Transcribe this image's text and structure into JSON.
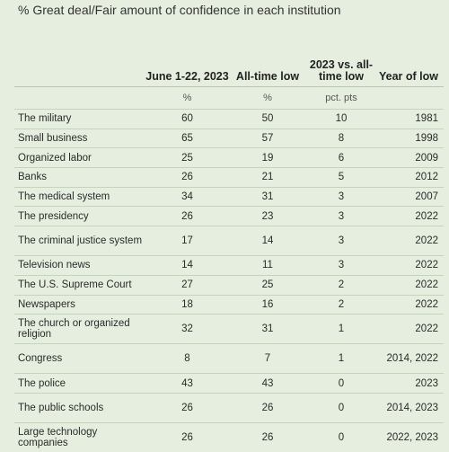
{
  "title": "% Great deal/Fair amount of confidence in each institution",
  "columns": {
    "june": "June 1-22, 2023",
    "low": "All-time low",
    "diff": "2023 vs. all-time low",
    "year": "Year of low"
  },
  "units": {
    "june": "%",
    "low": "%",
    "diff": "pct. pts",
    "year": ""
  },
  "chart_data": {
    "type": "table",
    "columns": [
      "June 1-22, 2023",
      "All-time low",
      "2023 vs. all-time low",
      "Year of low"
    ],
    "rows": [
      {
        "institution": "The military",
        "june": "60",
        "low": "50",
        "diff": "10",
        "year": "1981"
      },
      {
        "institution": "Small business",
        "june": "65",
        "low": "57",
        "diff": "8",
        "year": "1998"
      },
      {
        "institution": "Organized labor",
        "june": "25",
        "low": "19",
        "diff": "6",
        "year": "2009"
      },
      {
        "institution": "Banks",
        "june": "26",
        "low": "21",
        "diff": "5",
        "year": "2012"
      },
      {
        "institution": "The medical system",
        "june": "34",
        "low": "31",
        "diff": "3",
        "year": "2007"
      },
      {
        "institution": "The presidency",
        "june": "26",
        "low": "23",
        "diff": "3",
        "year": "2022"
      },
      {
        "institution": "The criminal justice system",
        "june": "17",
        "low": "14",
        "diff": "3",
        "year": "2022"
      },
      {
        "institution": "Television news",
        "june": "14",
        "low": "11",
        "diff": "3",
        "year": "2022"
      },
      {
        "institution": "The U.S. Supreme Court",
        "june": "27",
        "low": "25",
        "diff": "2",
        "year": "2022"
      },
      {
        "institution": "Newspapers",
        "june": "18",
        "low": "16",
        "diff": "2",
        "year": "2022"
      },
      {
        "institution": "The church or organized religion",
        "june": "32",
        "low": "31",
        "diff": "1",
        "year": "2022"
      },
      {
        "institution": "Congress",
        "june": "8",
        "low": "7",
        "diff": "1",
        "year": "2014, 2022"
      },
      {
        "institution": "The police",
        "june": "43",
        "low": "43",
        "diff": "0",
        "year": "2023"
      },
      {
        "institution": "The public schools",
        "june": "26",
        "low": "26",
        "diff": "0",
        "year": "2014, 2023"
      },
      {
        "institution": "Large technology companies",
        "june": "26",
        "low": "26",
        "diff": "0",
        "year": "2022, 2023"
      }
    ]
  }
}
